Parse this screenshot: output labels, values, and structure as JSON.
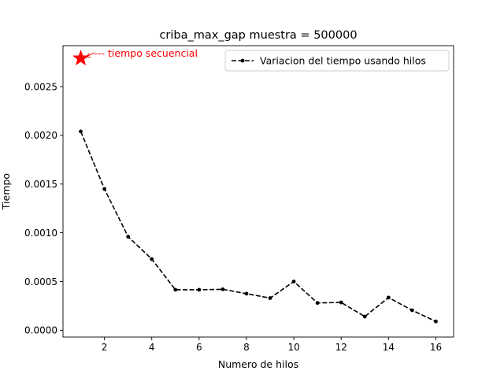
{
  "chart_data": {
    "type": "line",
    "title": "criba_max_gap muestra = 500000",
    "xlabel": "Numero de hilos",
    "ylabel": "Tiempo",
    "xlim": [
      0.25,
      16.75
    ],
    "ylim": [
      -7e-05,
      0.00292
    ],
    "x_ticks": [
      2,
      4,
      6,
      8,
      10,
      12,
      14,
      16
    ],
    "x_tick_labels": [
      "2",
      "4",
      "6",
      "8",
      "10",
      "12",
      "14",
      "16"
    ],
    "y_ticks": [
      0.0,
      0.0005,
      0.001,
      0.0015,
      0.002,
      0.0025
    ],
    "y_tick_labels": [
      "0.0000",
      "0.0005",
      "0.0010",
      "0.0015",
      "0.0020",
      "0.0025"
    ],
    "grid": false,
    "legend_position": "top-right",
    "series": [
      {
        "name": "Variacion del tiempo usando hilos",
        "color": "#000000",
        "line_style": "dashed",
        "marker": "dot",
        "x": [
          1,
          2,
          3,
          4,
          5,
          6,
          7,
          8,
          9,
          10,
          11,
          12,
          13,
          14,
          15,
          16
        ],
        "y": [
          0.00204,
          0.00145,
          0.00096,
          0.00073,
          0.000415,
          0.000415,
          0.00042,
          0.000375,
          0.00033,
          0.0005,
          0.00028,
          0.000285,
          0.00014,
          0.000335,
          0.000205,
          9e-05
        ]
      }
    ],
    "sequential_point": {
      "x": 1,
      "y": 0.00279,
      "color": "#ff0000",
      "marker": "star",
      "annotation": "--- tiempo secuencial"
    }
  }
}
